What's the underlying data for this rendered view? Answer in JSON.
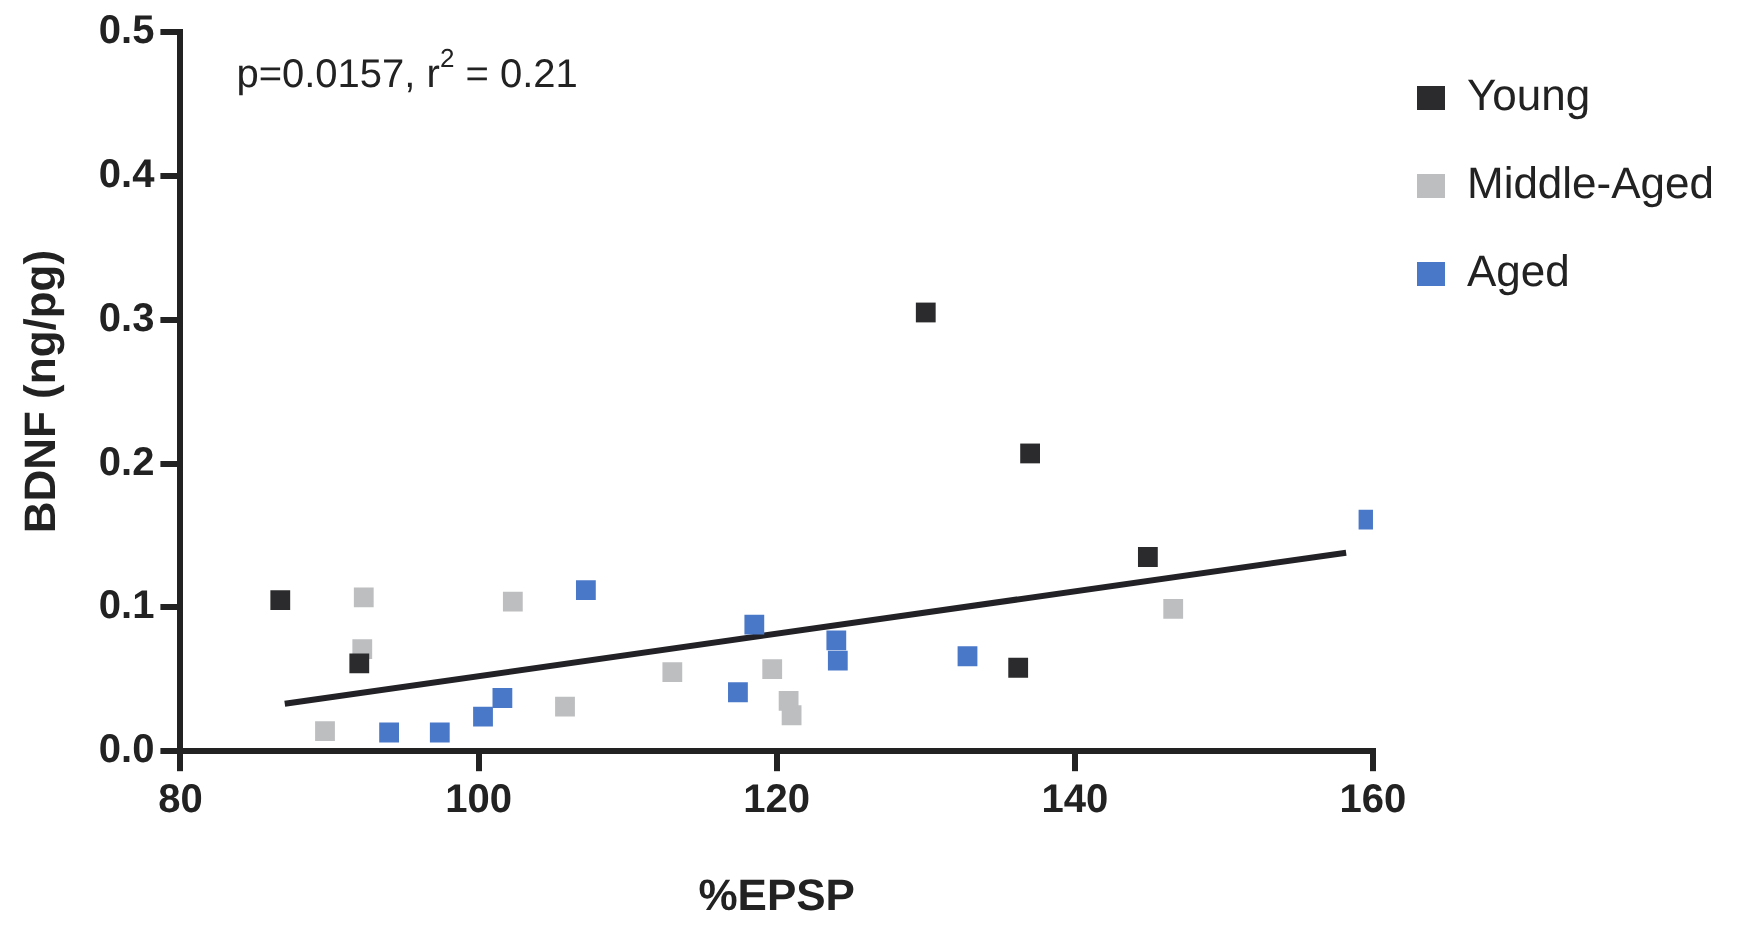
{
  "chart_data": {
    "type": "scatter",
    "xlabel": "%EPSP",
    "ylabel": "BDNF (ng/pg)",
    "annotations": [
      "p=0.0157, r$^{2}$ = 0.21"
    ],
    "xlim": [
      80,
      160
    ],
    "xticks": [
      80,
      100,
      120,
      140,
      160
    ],
    "ylim": [
      0,
      0.5
    ],
    "yticks": [
      {
        "value": 0,
        "label": "0.0"
      },
      {
        "value": 0.1,
        "label": "0.1"
      },
      {
        "value": 0.2,
        "label": "0.2"
      },
      {
        "value": 0.3,
        "label": "0.3"
      },
      {
        "value": 0.4,
        "label": "0.4"
      },
      {
        "value": 0.5,
        "label": "0.5"
      }
    ],
    "grid": false,
    "legend": "top right",
    "marker": "square",
    "series": [
      {
        "name": "Young",
        "color": "#2b2b2d",
        "x": [
          86.7,
          92,
          130,
          137,
          144.9,
          136.2
        ],
        "values": [
          0.105,
          0.061,
          0.305,
          0.207,
          0.135,
          0.058
        ]
      },
      {
        "name": "Middle-Aged",
        "color": "#bdbec0",
        "x": [
          92.3,
          92.2,
          89.7,
          102.3,
          105.8,
          113,
          119.7,
          120.8,
          121,
          146.6
        ],
        "values": [
          0.107,
          0.071,
          0.014,
          0.104,
          0.031,
          0.055,
          0.057,
          0.035,
          0.025,
          0.099
        ]
      },
      {
        "name": "Aged",
        "color": "#4a78c8",
        "x": [
          107.2,
          94,
          97.4,
          100.3,
          101.6,
          118.5,
          117.4,
          124,
          124.1,
          132.8,
          159.7
        ],
        "values": [
          0.112,
          0.013,
          0.013,
          0.024,
          0.037,
          0.088,
          0.041,
          0.077,
          0.063,
          0.066,
          0.161
        ]
      },
      {
        "type": "line",
        "color": "#222226",
        "marker": "none",
        "x": [
          87,
          158.2
        ],
        "values": [
          0.033,
          0.138
        ]
      }
    ]
  }
}
